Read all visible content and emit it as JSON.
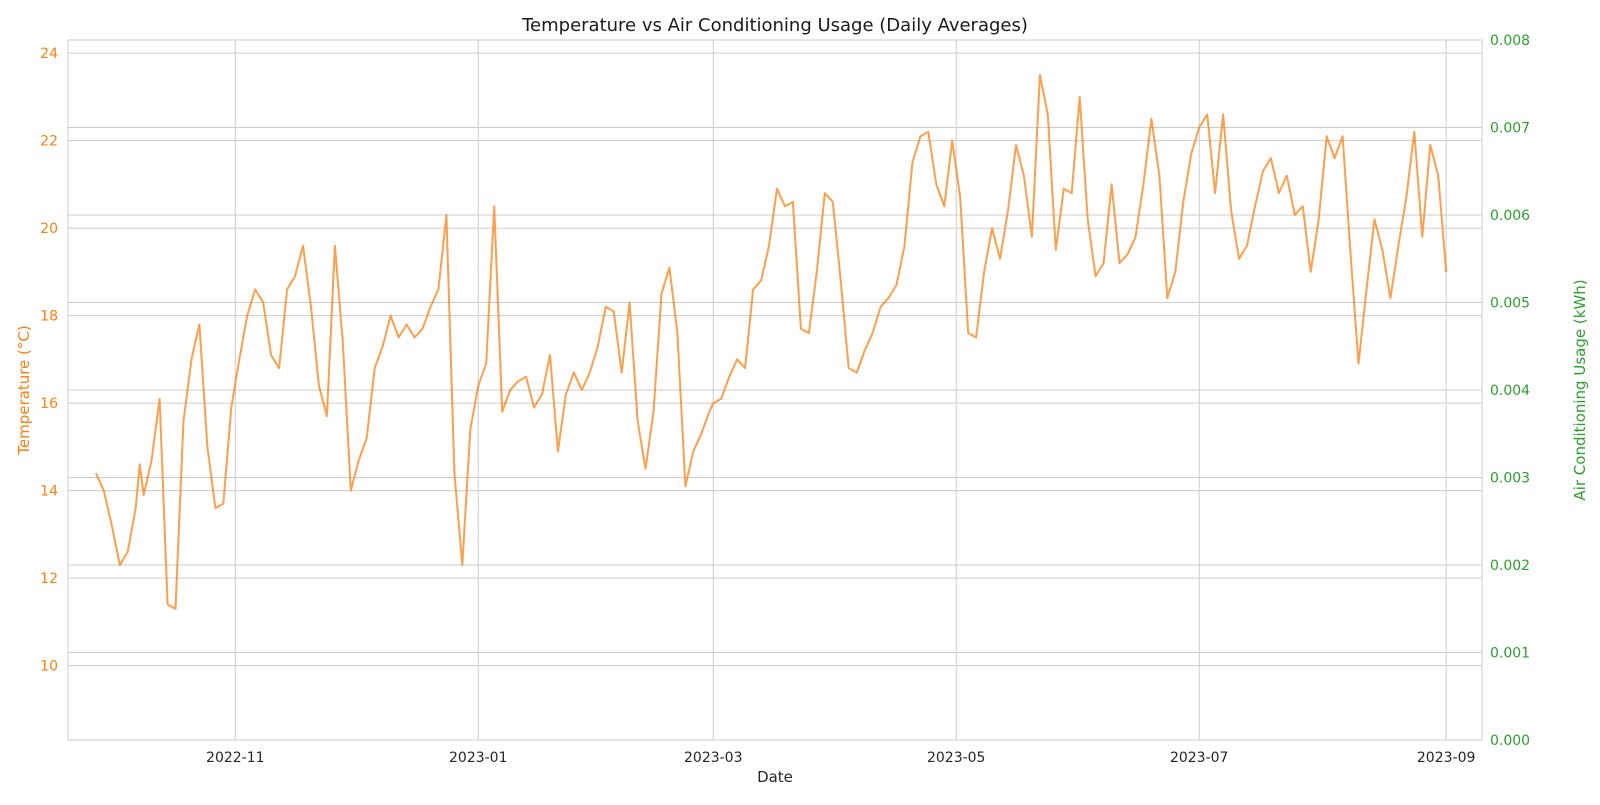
{
  "chart_data": {
    "type": "line",
    "title": "Temperature vs Air Conditioning Usage (Daily Averages)",
    "xlabel": "Date",
    "ylabel_left": "Temperature (°C)",
    "ylabel_right": "Air Conditioning Usage (kWh)",
    "x_range": [
      "2022-09-20",
      "2023-09-10"
    ],
    "x_ticks": [
      "2022-11-01",
      "2023-01-01",
      "2023-03-01",
      "2023-05-01",
      "2023-07-01",
      "2023-09-01"
    ],
    "x_tick_labels": [
      "2022-11",
      "2023-01",
      "2023-03",
      "2023-05",
      "2023-07",
      "2023-09"
    ],
    "y_left_range": [
      8.3,
      24.3
    ],
    "y_left_ticks": [
      10,
      12,
      14,
      16,
      18,
      20,
      22,
      24
    ],
    "y_right_range": [
      0,
      0.008
    ],
    "y_right_ticks": [
      "0.000",
      "0.001",
      "0.002",
      "0.003",
      "0.004",
      "0.005",
      "0.006",
      "0.007",
      "0.008"
    ],
    "grid": true,
    "colors": {
      "temperature": "#ff7f0e",
      "ac_usage": "#2ca02c"
    },
    "series": [
      {
        "key": "temperature",
        "axis": "left",
        "points": [
          [
            "2022-09-27",
            14.4
          ],
          [
            "2022-09-29",
            14.0
          ],
          [
            "2022-10-01",
            13.2
          ],
          [
            "2022-10-03",
            12.3
          ],
          [
            "2022-10-05",
            12.6
          ],
          [
            "2022-10-07",
            13.6
          ],
          [
            "2022-10-08",
            14.6
          ],
          [
            "2022-10-09",
            13.9
          ],
          [
            "2022-10-11",
            14.7
          ],
          [
            "2022-10-13",
            16.1
          ],
          [
            "2022-10-15",
            11.4
          ],
          [
            "2022-10-17",
            11.3
          ],
          [
            "2022-10-19",
            15.6
          ],
          [
            "2022-10-21",
            17.0
          ],
          [
            "2022-10-23",
            17.8
          ],
          [
            "2022-10-25",
            15.0
          ],
          [
            "2022-10-27",
            13.6
          ],
          [
            "2022-10-29",
            13.7
          ],
          [
            "2022-10-31",
            15.9
          ],
          [
            "2022-11-02",
            17.0
          ],
          [
            "2022-11-04",
            18.0
          ],
          [
            "2022-11-06",
            18.6
          ],
          [
            "2022-11-08",
            18.3
          ],
          [
            "2022-11-10",
            17.1
          ],
          [
            "2022-11-12",
            16.8
          ],
          [
            "2022-11-14",
            18.6
          ],
          [
            "2022-11-16",
            18.9
          ],
          [
            "2022-11-18",
            19.6
          ],
          [
            "2022-11-20",
            18.2
          ],
          [
            "2022-11-22",
            16.4
          ],
          [
            "2022-11-24",
            15.7
          ],
          [
            "2022-11-26",
            19.6
          ],
          [
            "2022-11-28",
            17.4
          ],
          [
            "2022-11-30",
            14.0
          ],
          [
            "2022-12-02",
            14.7
          ],
          [
            "2022-12-04",
            15.2
          ],
          [
            "2022-12-06",
            16.8
          ],
          [
            "2022-12-08",
            17.3
          ],
          [
            "2022-12-10",
            18.0
          ],
          [
            "2022-12-12",
            17.5
          ],
          [
            "2022-12-14",
            17.8
          ],
          [
            "2022-12-16",
            17.5
          ],
          [
            "2022-12-18",
            17.7
          ],
          [
            "2022-12-20",
            18.2
          ],
          [
            "2022-12-22",
            18.6
          ],
          [
            "2022-12-24",
            20.3
          ],
          [
            "2022-12-26",
            14.4
          ],
          [
            "2022-12-28",
            12.3
          ],
          [
            "2022-12-30",
            15.4
          ],
          [
            "2023-01-01",
            16.4
          ],
          [
            "2023-01-03",
            16.9
          ],
          [
            "2023-01-05",
            20.5
          ],
          [
            "2023-01-07",
            15.8
          ],
          [
            "2023-01-09",
            16.3
          ],
          [
            "2023-01-11",
            16.5
          ],
          [
            "2023-01-13",
            16.6
          ],
          [
            "2023-01-15",
            15.9
          ],
          [
            "2023-01-17",
            16.2
          ],
          [
            "2023-01-19",
            17.1
          ],
          [
            "2023-01-21",
            14.9
          ],
          [
            "2023-01-23",
            16.2
          ],
          [
            "2023-01-25",
            16.7
          ],
          [
            "2023-01-27",
            16.3
          ],
          [
            "2023-01-29",
            16.7
          ],
          [
            "2023-01-31",
            17.3
          ],
          [
            "2023-02-02",
            18.2
          ],
          [
            "2023-02-04",
            18.1
          ],
          [
            "2023-02-06",
            16.7
          ],
          [
            "2023-02-08",
            18.3
          ],
          [
            "2023-02-10",
            15.6
          ],
          [
            "2023-02-12",
            14.5
          ],
          [
            "2023-02-14",
            15.8
          ],
          [
            "2023-02-16",
            18.5
          ],
          [
            "2023-02-18",
            19.1
          ],
          [
            "2023-02-20",
            17.6
          ],
          [
            "2023-02-22",
            14.1
          ],
          [
            "2023-02-24",
            14.9
          ],
          [
            "2023-02-26",
            15.3
          ],
          [
            "2023-02-28",
            15.8
          ],
          [
            "2023-03-01",
            16.0
          ],
          [
            "2023-03-03",
            16.1
          ],
          [
            "2023-03-05",
            16.6
          ],
          [
            "2023-03-07",
            17.0
          ],
          [
            "2023-03-09",
            16.8
          ],
          [
            "2023-03-11",
            18.6
          ],
          [
            "2023-03-13",
            18.8
          ],
          [
            "2023-03-15",
            19.6
          ],
          [
            "2023-03-17",
            20.9
          ],
          [
            "2023-03-19",
            20.5
          ],
          [
            "2023-03-21",
            20.6
          ],
          [
            "2023-03-23",
            17.7
          ],
          [
            "2023-03-25",
            17.6
          ],
          [
            "2023-03-27",
            19.0
          ],
          [
            "2023-03-29",
            20.8
          ],
          [
            "2023-03-31",
            20.6
          ],
          [
            "2023-04-02",
            18.8
          ],
          [
            "2023-04-04",
            16.8
          ],
          [
            "2023-04-06",
            16.7
          ],
          [
            "2023-04-08",
            17.2
          ],
          [
            "2023-04-10",
            17.6
          ],
          [
            "2023-04-12",
            18.2
          ],
          [
            "2023-04-14",
            18.4
          ],
          [
            "2023-04-16",
            18.7
          ],
          [
            "2023-04-18",
            19.6
          ],
          [
            "2023-04-20",
            21.5
          ],
          [
            "2023-04-22",
            22.1
          ],
          [
            "2023-04-24",
            22.2
          ],
          [
            "2023-04-26",
            21.0
          ],
          [
            "2023-04-28",
            20.5
          ],
          [
            "2023-04-30",
            22.0
          ],
          [
            "2023-05-02",
            20.7
          ],
          [
            "2023-05-04",
            17.6
          ],
          [
            "2023-05-06",
            17.5
          ],
          [
            "2023-05-08",
            19.0
          ],
          [
            "2023-05-10",
            20.0
          ],
          [
            "2023-05-12",
            19.3
          ],
          [
            "2023-05-14",
            20.4
          ],
          [
            "2023-05-16",
            21.9
          ],
          [
            "2023-05-18",
            21.2
          ],
          [
            "2023-05-20",
            19.8
          ],
          [
            "2023-05-22",
            23.5
          ],
          [
            "2023-05-24",
            22.6
          ],
          [
            "2023-05-26",
            19.5
          ],
          [
            "2023-05-28",
            20.9
          ],
          [
            "2023-05-30",
            20.8
          ],
          [
            "2023-06-01",
            23.0
          ],
          [
            "2023-06-03",
            20.2
          ],
          [
            "2023-06-05",
            18.9
          ],
          [
            "2023-06-07",
            19.2
          ],
          [
            "2023-06-09",
            21.0
          ],
          [
            "2023-06-11",
            19.2
          ],
          [
            "2023-06-13",
            19.4
          ],
          [
            "2023-06-15",
            19.8
          ],
          [
            "2023-06-17",
            21.0
          ],
          [
            "2023-06-19",
            22.5
          ],
          [
            "2023-06-21",
            21.2
          ],
          [
            "2023-06-23",
            18.4
          ],
          [
            "2023-06-25",
            19.0
          ],
          [
            "2023-06-27",
            20.6
          ],
          [
            "2023-06-29",
            21.7
          ],
          [
            "2023-07-01",
            22.3
          ],
          [
            "2023-07-03",
            22.6
          ],
          [
            "2023-07-05",
            20.8
          ],
          [
            "2023-07-07",
            22.6
          ],
          [
            "2023-07-09",
            20.4
          ],
          [
            "2023-07-11",
            19.3
          ],
          [
            "2023-07-13",
            19.6
          ],
          [
            "2023-07-15",
            20.5
          ],
          [
            "2023-07-17",
            21.3
          ],
          [
            "2023-07-19",
            21.6
          ],
          [
            "2023-07-21",
            20.8
          ],
          [
            "2023-07-23",
            21.2
          ],
          [
            "2023-07-25",
            20.3
          ],
          [
            "2023-07-27",
            20.5
          ],
          [
            "2023-07-29",
            19.0
          ],
          [
            "2023-07-31",
            20.2
          ],
          [
            "2023-08-02",
            22.1
          ],
          [
            "2023-08-04",
            21.6
          ],
          [
            "2023-08-06",
            22.1
          ],
          [
            "2023-08-08",
            19.4
          ],
          [
            "2023-08-10",
            16.9
          ],
          [
            "2023-08-12",
            18.6
          ],
          [
            "2023-08-14",
            20.2
          ],
          [
            "2023-08-16",
            19.5
          ],
          [
            "2023-08-18",
            18.4
          ],
          [
            "2023-08-20",
            19.6
          ],
          [
            "2023-08-22",
            20.7
          ],
          [
            "2023-08-24",
            22.2
          ],
          [
            "2023-08-26",
            19.8
          ],
          [
            "2023-08-28",
            21.9
          ],
          [
            "2023-08-30",
            21.2
          ],
          [
            "2023-09-01",
            19.0
          ]
        ]
      },
      {
        "key": "ac_usage",
        "axis": "right",
        "points": []
      }
    ]
  }
}
